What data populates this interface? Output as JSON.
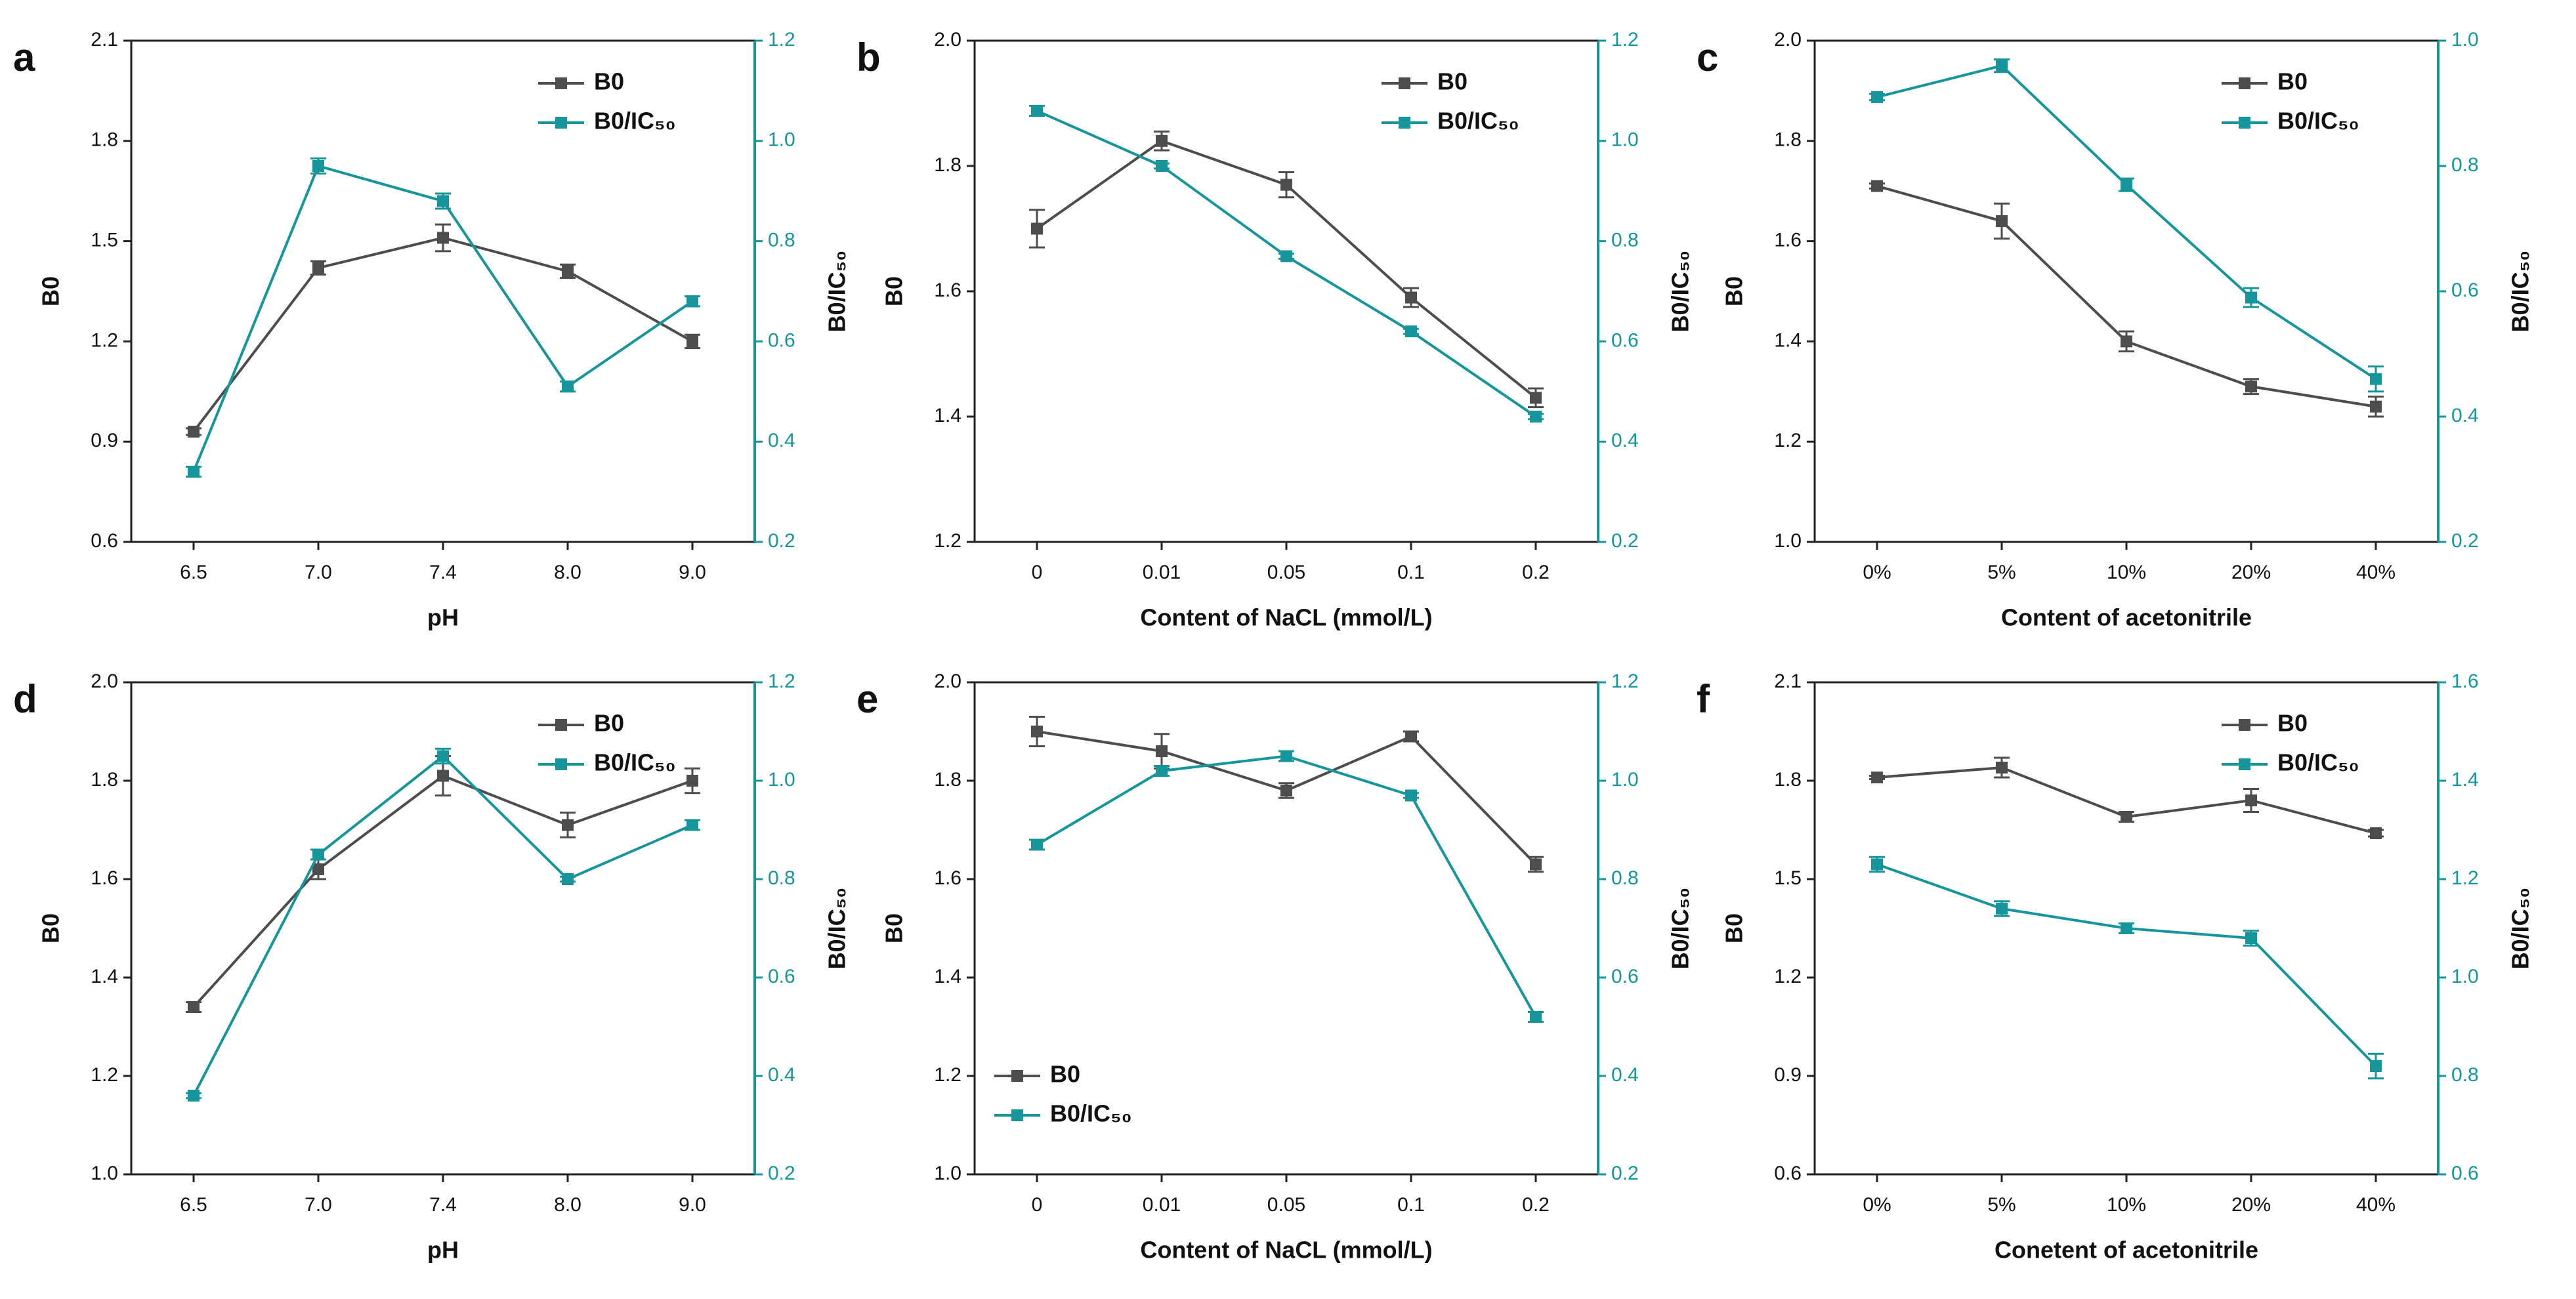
{
  "chart_data": [
    {
      "type": "line",
      "label": "a",
      "xlabel": "pH",
      "ylabel": "B0",
      "y2label": "B0/IC₅₀",
      "categories": [
        "6.5",
        "7.0",
        "7.4",
        "8.0",
        "9.0"
      ],
      "ylim": [
        0.6,
        2.1
      ],
      "yticks": [
        0.6,
        0.9,
        1.2,
        1.5,
        1.8,
        2.1
      ],
      "y2lim": [
        0.2,
        1.2
      ],
      "y2ticks": [
        0.2,
        0.4,
        0.6,
        0.8,
        {
          "value": 1,
          "label": "1.0"
        },
        1.2
      ],
      "legend": "upper right",
      "series": [
        {
          "name": "B0",
          "color": "#4d4d4d",
          "values": [
            0.93,
            1.42,
            1.51,
            1.41,
            1.2
          ],
          "errors": [
            0.01,
            0.02,
            0.04,
            0.02,
            0.02
          ]
        },
        {
          "name": "B0/IC₅₀",
          "color": "#16969a",
          "axis": "y2",
          "values": [
            0.34,
            0.95,
            0.88,
            0.51,
            0.68
          ],
          "errors": [
            0.01,
            0.015,
            0.015,
            0.01,
            0.01
          ]
        }
      ]
    },
    {
      "type": "line",
      "label": "b",
      "xlabel": "Content of NaCL (mmol/L)",
      "ylabel": "B0",
      "y2label": "B0/IC₅₀",
      "categories": [
        "0",
        "0.01",
        "0.05",
        "0.1",
        "0.2"
      ],
      "ylim": [
        1.2,
        2.0
      ],
      "yticks": [
        1.2,
        1.4,
        1.6,
        1.8,
        {
          "value": 2,
          "label": "2.0"
        }
      ],
      "y2lim": [
        0.2,
        1.2
      ],
      "y2ticks": [
        0.2,
        0.4,
        0.6,
        0.8,
        {
          "value": 1,
          "label": "1.0"
        },
        1.2
      ],
      "legend": "upper right",
      "series": [
        {
          "name": "B0",
          "color": "#4d4d4d",
          "values": [
            1.7,
            1.84,
            1.77,
            1.59,
            1.43
          ],
          "errors": [
            0.03,
            0.015,
            0.02,
            0.015,
            0.015
          ]
        },
        {
          "name": "B0/IC₅₀",
          "color": "#16969a",
          "axis": "y2",
          "values": [
            1.06,
            0.95,
            0.77,
            0.62,
            0.45
          ],
          "errors": [
            0.01,
            0.005,
            0.005,
            0.005,
            0.005
          ]
        }
      ]
    },
    {
      "type": "line",
      "label": "c",
      "xlabel": "Content of acetonitrile",
      "ylabel": "B0",
      "y2label": "B0/IC₅₀",
      "categories": [
        "0%",
        "5%",
        "10%",
        "20%",
        "40%"
      ],
      "ylim": [
        1.0,
        2.0
      ],
      "yticks": [
        {
          "value": 1,
          "label": "1.0"
        },
        1.2,
        1.4,
        1.6,
        1.8,
        {
          "value": 2,
          "label": "2.0"
        }
      ],
      "y2lim": [
        0.2,
        1.0
      ],
      "y2ticks": [
        0.2,
        0.4,
        0.6,
        0.8,
        {
          "value": 1,
          "label": "1.0"
        }
      ],
      "legend": "upper right",
      "series": [
        {
          "name": "B0",
          "color": "#4d4d4d",
          "values": [
            1.71,
            1.64,
            1.4,
            1.31,
            1.27
          ],
          "errors": [
            0.005,
            0.035,
            0.02,
            0.015,
            0.02
          ]
        },
        {
          "name": "B0/IC₅₀",
          "color": "#16969a",
          "axis": "y2",
          "values": [
            0.91,
            0.96,
            0.77,
            0.59,
            0.46
          ],
          "errors": [
            0.005,
            0.01,
            0.01,
            0.015,
            0.02
          ]
        }
      ]
    },
    {
      "type": "line",
      "label": "d",
      "xlabel": "pH",
      "ylabel": "B0",
      "y2label": "B0/IC₅₀",
      "categories": [
        "6.5",
        "7.0",
        "7.4",
        "8.0",
        "9.0"
      ],
      "ylim": [
        1.0,
        2.0
      ],
      "yticks": [
        {
          "value": 1,
          "label": "1.0"
        },
        1.2,
        1.4,
        1.6,
        1.8,
        {
          "value": 2,
          "label": "2.0"
        }
      ],
      "y2lim": [
        0.2,
        1.2
      ],
      "y2ticks": [
        0.2,
        0.4,
        0.6,
        0.8,
        {
          "value": 1,
          "label": "1.0"
        },
        1.2
      ],
      "legend": "upper right",
      "series": [
        {
          "name": "B0",
          "color": "#4d4d4d",
          "values": [
            1.34,
            1.62,
            1.81,
            1.71,
            1.8
          ],
          "errors": [
            0.01,
            0.02,
            0.04,
            0.025,
            0.025
          ]
        },
        {
          "name": "B0/IC₅₀",
          "color": "#16969a",
          "axis": "y2",
          "values": [
            0.36,
            0.85,
            1.05,
            0.8,
            0.91
          ],
          "errors": [
            0.005,
            0.01,
            0.015,
            0.005,
            0.01
          ]
        }
      ]
    },
    {
      "type": "line",
      "label": "e",
      "xlabel": "Content of NaCL (mmol/L)",
      "ylabel": "B0",
      "y2label": "B0/IC₅₀",
      "categories": [
        "0",
        "0.01",
        "0.05",
        "0.1",
        "0.2"
      ],
      "ylim": [
        1.0,
        2.0
      ],
      "yticks": [
        {
          "value": 1,
          "label": "1.0"
        },
        1.2,
        1.4,
        1.6,
        1.8,
        {
          "value": 2,
          "label": "2.0"
        }
      ],
      "y2lim": [
        0.2,
        1.2
      ],
      "y2ticks": [
        0.2,
        0.4,
        0.6,
        0.8,
        {
          "value": 1,
          "label": "1.0"
        },
        1.2
      ],
      "legend": "lower left",
      "series": [
        {
          "name": "B0",
          "color": "#4d4d4d",
          "values": [
            1.9,
            1.86,
            1.78,
            1.89,
            1.63
          ],
          "errors": [
            0.03,
            0.035,
            0.015,
            0.01,
            0.015
          ]
        },
        {
          "name": "B0/IC₅₀",
          "color": "#16969a",
          "axis": "y2",
          "values": [
            0.87,
            1.02,
            1.05,
            0.97,
            0.52
          ],
          "errors": [
            0.01,
            0.01,
            0.01,
            0.005,
            0.01
          ]
        }
      ]
    },
    {
      "type": "line",
      "label": "f",
      "xlabel": "Conetent of acetonitrile",
      "ylabel": "B0",
      "y2label": "B0/IC₅₀",
      "categories": [
        "0%",
        "5%",
        "10%",
        "20%",
        "40%"
      ],
      "ylim": [
        0.6,
        2.1
      ],
      "yticks": [
        0.6,
        0.9,
        1.2,
        1.5,
        1.8,
        2.1
      ],
      "y2lim": [
        0.6,
        1.6
      ],
      "y2ticks": [
        0.6,
        0.8,
        {
          "value": 1,
          "label": "1.0"
        },
        1.2,
        1.4,
        1.6
      ],
      "legend": "upper right",
      "series": [
        {
          "name": "B0",
          "color": "#4d4d4d",
          "values": [
            1.81,
            1.84,
            1.69,
            1.74,
            1.64
          ],
          "errors": [
            0.005,
            0.03,
            0.015,
            0.035,
            0.01
          ]
        },
        {
          "name": "B0/IC₅₀",
          "color": "#16969a",
          "axis": "y2",
          "values": [
            1.23,
            1.14,
            1.1,
            1.08,
            0.82
          ],
          "errors": [
            0.015,
            0.015,
            0.01,
            0.015,
            0.025
          ]
        }
      ]
    }
  ]
}
